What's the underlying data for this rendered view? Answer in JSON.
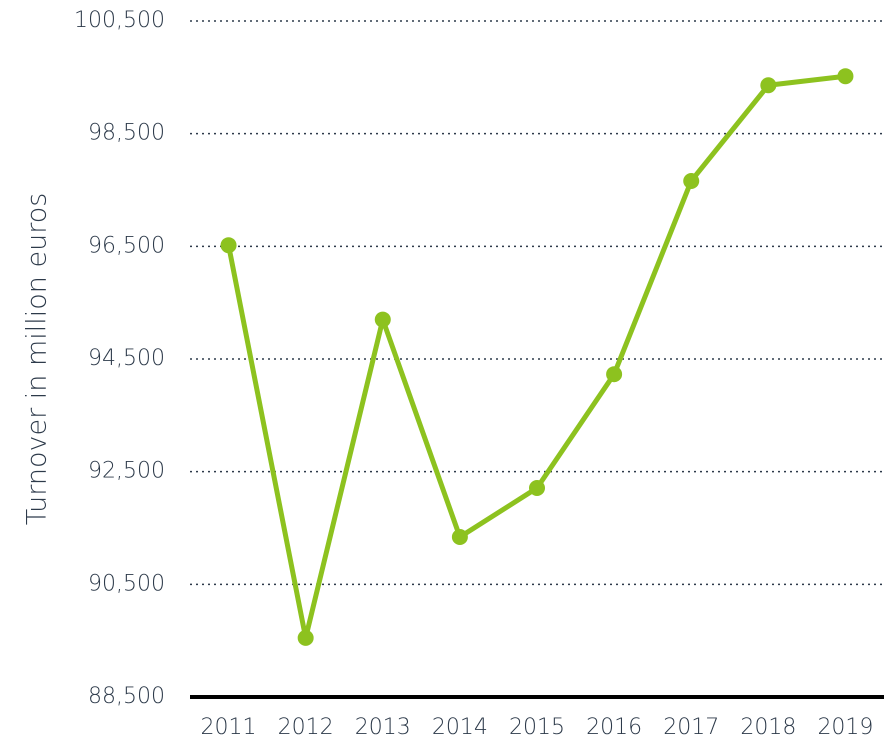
{
  "chart_data": {
    "type": "line",
    "y_label": "Turnover in million euros",
    "categories": [
      "2011",
      "2012",
      "2013",
      "2014",
      "2015",
      "2016",
      "2017",
      "2018",
      "2019"
    ],
    "series": [
      {
        "name": "Turnover",
        "color": "#8dc21f",
        "values": [
          96520,
          89550,
          95200,
          91340,
          92210,
          94230,
          97660,
          99360,
          99520
        ]
      }
    ],
    "ylim": [
      88500,
      100500
    ],
    "yticks": [
      {
        "value": 88500,
        "label": "88,500"
      },
      {
        "value": 90500,
        "label": "90,500"
      },
      {
        "value": 92500,
        "label": "92,500"
      },
      {
        "value": 94500,
        "label": "94,500"
      },
      {
        "value": 96500,
        "label": "96,500"
      },
      {
        "value": 98500,
        "label": "98,500"
      },
      {
        "value": 100500,
        "label": "100,500"
      }
    ],
    "grid": true
  }
}
